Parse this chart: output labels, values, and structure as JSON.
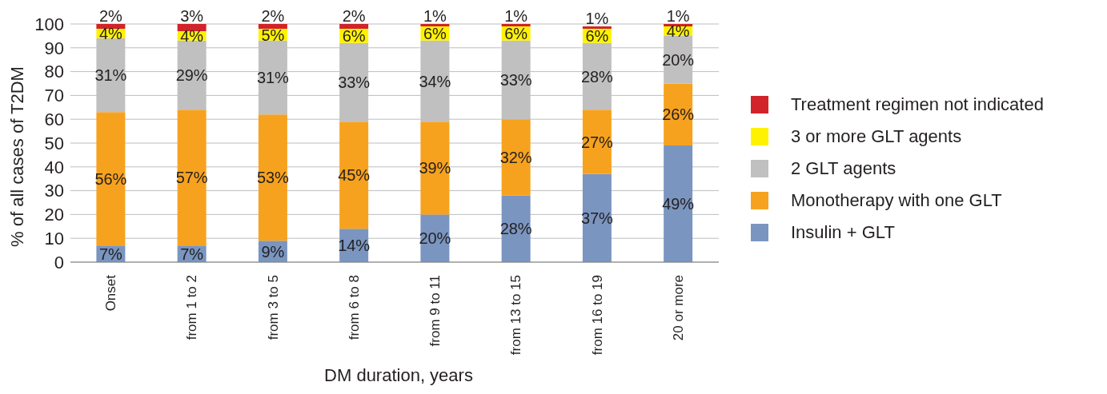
{
  "chart_data": {
    "type": "bar",
    "stacked": true,
    "xlabel": "DM duration, years",
    "ylabel": "% of all cases of T2DM",
    "categories": [
      "Onset",
      "from 1 to 2",
      "from 3 to 5",
      "from 6 to 8",
      "from 9 to 11",
      "from 13 to 15",
      "from 16 to 19",
      "20 or more"
    ],
    "series": [
      {
        "name": "Insulin + GLT",
        "color": "#7a95c0",
        "values": [
          7,
          7,
          9,
          14,
          20,
          28,
          37,
          49
        ],
        "value_labels": [
          "7%",
          "7%",
          "9%",
          "14%",
          "20%",
          "28%",
          "37%",
          "49%"
        ]
      },
      {
        "name": "Monotherapy with one GLT",
        "color": "#f7a21e",
        "values": [
          56,
          57,
          53,
          45,
          39,
          32,
          27,
          26
        ],
        "value_labels": [
          "56%",
          "57%",
          "53%",
          "45%",
          "39%",
          "32%",
          "27%",
          "26%"
        ]
      },
      {
        "name": "2 GLT agents",
        "color": "#c0c0c0",
        "values": [
          31,
          29,
          31,
          33,
          34,
          33,
          28,
          20
        ],
        "value_labels": [
          "31%",
          "29%",
          "31%",
          "33%",
          "34%",
          "33%",
          "28%",
          "20%"
        ]
      },
      {
        "name": "3 or more GLT agents",
        "color": "#fff200",
        "values": [
          4,
          4,
          5,
          6,
          6,
          6,
          6,
          4
        ],
        "value_labels": [
          "4%",
          "4%",
          "5%",
          "6%",
          "6%",
          "6%",
          "6%",
          "4%"
        ]
      },
      {
        "name": "Treatment regimen not indicated",
        "color": "#d2232a",
        "values": [
          2,
          3,
          2,
          2,
          1,
          1,
          1,
          1
        ],
        "value_labels": [
          "2%",
          "3%",
          "2%",
          "2%",
          "1%",
          "1%",
          "1%",
          "1%"
        ]
      }
    ],
    "ylim": [
      0,
      100
    ],
    "yticks": [
      0,
      10,
      20,
      30,
      40,
      50,
      60,
      70,
      80,
      90,
      100
    ],
    "grid": "y",
    "legend": "right"
  }
}
